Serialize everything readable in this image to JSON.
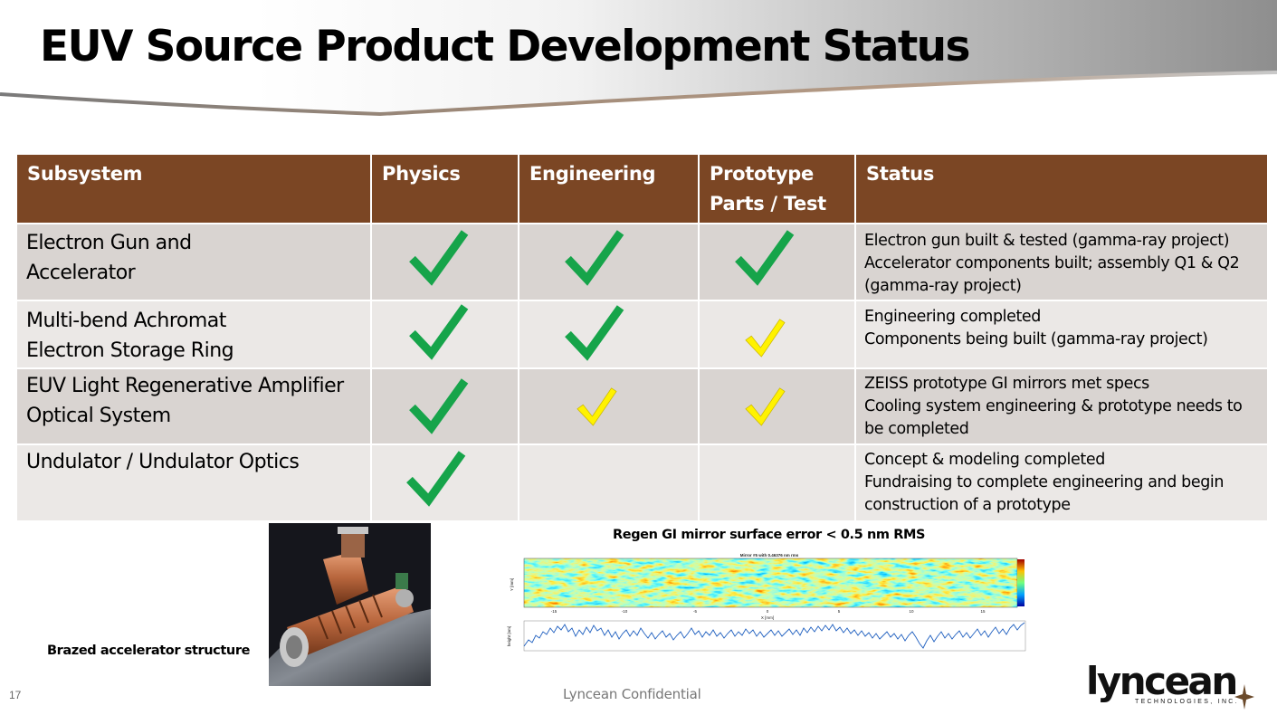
{
  "slide": {
    "title": "EUV Source Product Development Status",
    "page_number": "17",
    "footer": "Lyncean Confidential"
  },
  "colors": {
    "header_fill": "#7b4624",
    "row_dark": "#d9d4d1",
    "row_light": "#ebe8e6",
    "check_green": "#16a44a",
    "check_yellow": "#fff200"
  },
  "table": {
    "headers": {
      "subsystem": "Subsystem",
      "physics": "Physics",
      "engineering": "Engineering",
      "prototype_line1": "Prototype",
      "prototype_line2": "Parts / Test",
      "status": "Status"
    },
    "rows": [
      {
        "subsystem_line1": "Electron Gun and",
        "subsystem_line2": "Accelerator",
        "physics": "complete",
        "engineering": "complete",
        "prototype": "complete",
        "status": [
          "Electron gun built & tested (gamma-ray project)",
          "Accelerator components built; assembly Q1 & Q2",
          "(gamma-ray project)"
        ]
      },
      {
        "subsystem_line1": "Multi-bend Achromat",
        "subsystem_line2": "Electron Storage Ring",
        "physics": "complete",
        "engineering": "complete",
        "prototype": "in-progress",
        "status": [
          "Engineering completed",
          "Components being built (gamma-ray project)"
        ]
      },
      {
        "subsystem_line1": "EUV Light Regenerative Amplifier",
        "subsystem_line2": "Optical System",
        "physics": "complete",
        "engineering": "in-progress",
        "prototype": "in-progress",
        "status": [
          "ZEISS prototype GI mirrors met specs",
          "Cooling system engineering & prototype needs to",
          "be completed"
        ]
      },
      {
        "subsystem_line1": "Undulator / Undulator Optics",
        "subsystem_line2": "",
        "physics": "complete",
        "engineering": "none",
        "prototype": "none",
        "status": [
          "Concept & modeling completed",
          "Fundraising to complete engineering and begin",
          "construction of a prototype"
        ]
      }
    ]
  },
  "accelerator_figure": {
    "caption": "Brazed accelerator structure"
  },
  "mirror_figure": {
    "title": "Regen GI mirror surface error  < 0.5 nm RMS",
    "plot_title": "Mirror #5 with 0.46376 nm rms",
    "map_xlabel": "X [mm]",
    "map_ylabel": "Y [mm]",
    "map_xticks": [
      "-15",
      "-10",
      "-5",
      "0",
      "5",
      "10",
      "15"
    ],
    "profile_ylabel": "height [nm]"
  },
  "logo": {
    "wordmark": "lyncean",
    "tagline": "TECHNOLOGIES, INC."
  }
}
